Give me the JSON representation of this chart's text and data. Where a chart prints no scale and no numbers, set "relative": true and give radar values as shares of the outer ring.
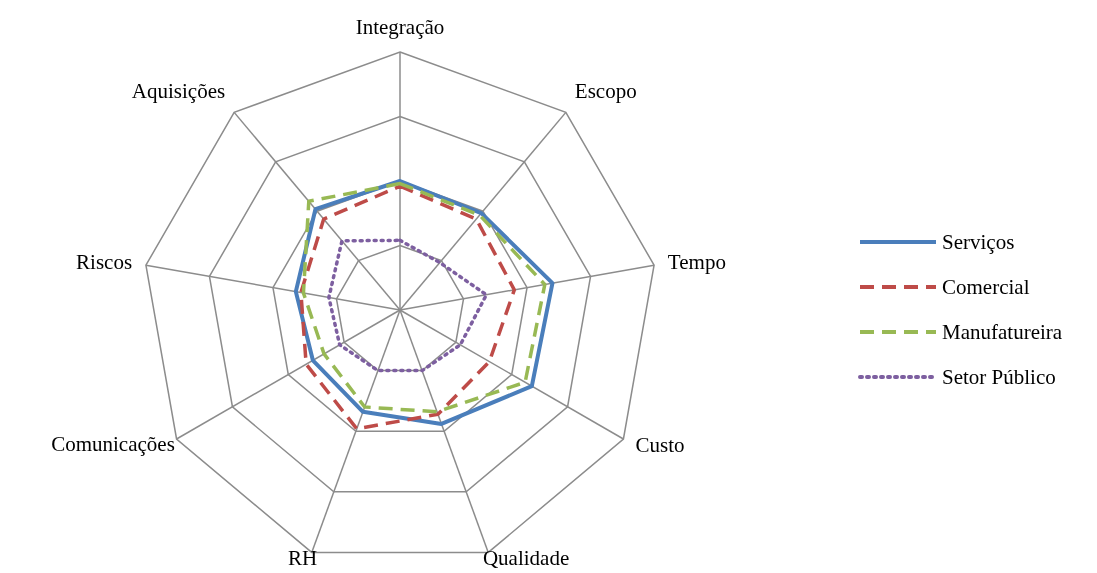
{
  "chart_data": {
    "type": "radar",
    "relative": true,
    "grid": true,
    "legend": "right",
    "categories": [
      "Integração",
      "Escopo",
      "Tempo",
      "Custo",
      "Qualidade",
      "RH",
      "Comunicações",
      "Riscos",
      "Aquisições"
    ],
    "series": [
      {
        "name": "Serviços",
        "color": "#4a7ebb",
        "line_style": "solid",
        "values": [
          0.5,
          0.49,
          0.6,
          0.59,
          0.47,
          0.42,
          0.39,
          0.41,
          0.51
        ]
      },
      {
        "name": "Comercial",
        "color": "#be4b48",
        "line_style": "dashed",
        "values": [
          0.48,
          0.46,
          0.45,
          0.4,
          0.43,
          0.49,
          0.42,
          0.39,
          0.46
        ]
      },
      {
        "name": "Manufatureira",
        "color": "#98b954",
        "line_style": "dashed",
        "values": [
          0.49,
          0.48,
          0.57,
          0.56,
          0.42,
          0.4,
          0.34,
          0.38,
          0.55
        ]
      },
      {
        "name": "Setor Público",
        "color": "#7d5fa0",
        "line_style": "dotted",
        "values": [
          0.27,
          0.24,
          0.34,
          0.27,
          0.25,
          0.25,
          0.27,
          0.28,
          0.35
        ]
      }
    ]
  }
}
